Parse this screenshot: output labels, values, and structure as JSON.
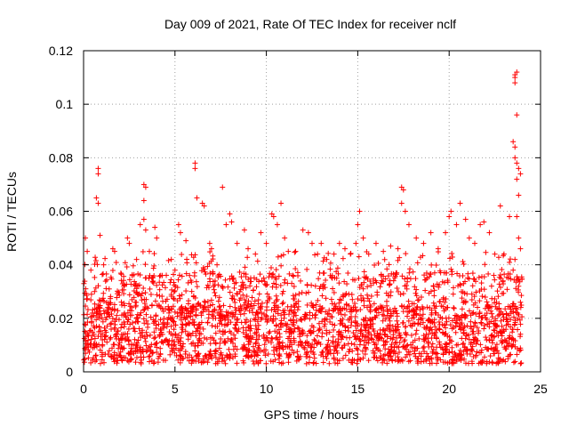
{
  "chart_data": {
    "type": "scatter",
    "title": "Day 009 of 2021, Rate Of TEC Index for receiver nclf",
    "xlabel": "GPS time / hours",
    "ylabel": "ROTI / TECUs",
    "xlim": [
      0,
      25
    ],
    "ylim": [
      0,
      0.12
    ],
    "x_ticks": [
      0,
      5,
      10,
      15,
      20,
      25
    ],
    "x_tick_labels": [
      "0",
      "5",
      "10",
      "15",
      "20",
      "25"
    ],
    "y_ticks": [
      0,
      0.02,
      0.04,
      0.06,
      0.08,
      0.1,
      0.12
    ],
    "y_tick_labels": [
      "0",
      "0.02",
      "0.04",
      "0.06",
      "0.08",
      "0.1",
      "0.12"
    ],
    "grid": true,
    "marker": "+",
    "color": "#ff0000",
    "dense_band": {
      "x_range": [
        0,
        24
      ],
      "y_low": 0.003,
      "y_high": 0.025
    },
    "series": [
      {
        "name": "ROTI",
        "points": [
          [
            0.1,
            0.05
          ],
          [
            0.2,
            0.045
          ],
          [
            0.4,
            0.038
          ],
          [
            0.6,
            0.03
          ],
          [
            0.8,
            0.076
          ],
          [
            0.8,
            0.074
          ],
          [
            0.7,
            0.065
          ],
          [
            0.8,
            0.063
          ],
          [
            0.9,
            0.051
          ],
          [
            1.1,
            0.04
          ],
          [
            1.6,
            0.046
          ],
          [
            1.7,
            0.045
          ],
          [
            2.2,
            0.032
          ],
          [
            2.4,
            0.05
          ],
          [
            2.5,
            0.048
          ],
          [
            2.9,
            0.042
          ],
          [
            3.1,
            0.055
          ],
          [
            3.3,
            0.07
          ],
          [
            3.4,
            0.069
          ],
          [
            3.3,
            0.064
          ],
          [
            3.3,
            0.057
          ],
          [
            3.4,
            0.053
          ],
          [
            3.6,
            0.045
          ],
          [
            3.9,
            0.054
          ],
          [
            4.0,
            0.05
          ],
          [
            4.3,
            0.036
          ],
          [
            4.8,
            0.042
          ],
          [
            5.0,
            0.038
          ],
          [
            5.2,
            0.055
          ],
          [
            5.3,
            0.052
          ],
          [
            5.6,
            0.049
          ],
          [
            5.8,
            0.036
          ],
          [
            6.1,
            0.078
          ],
          [
            6.1,
            0.076
          ],
          [
            6.2,
            0.065
          ],
          [
            6.5,
            0.063
          ],
          [
            6.6,
            0.062
          ],
          [
            6.9,
            0.048
          ],
          [
            7.0,
            0.046
          ],
          [
            7.3,
            0.04
          ],
          [
            7.6,
            0.069
          ],
          [
            7.8,
            0.055
          ],
          [
            8.0,
            0.059
          ],
          [
            8.1,
            0.056
          ],
          [
            8.4,
            0.048
          ],
          [
            8.8,
            0.053
          ],
          [
            9.0,
            0.046
          ],
          [
            9.4,
            0.044
          ],
          [
            9.7,
            0.052
          ],
          [
            10.0,
            0.048
          ],
          [
            10.3,
            0.059
          ],
          [
            10.4,
            0.058
          ],
          [
            10.6,
            0.055
          ],
          [
            10.8,
            0.063
          ],
          [
            11.0,
            0.05
          ],
          [
            11.2,
            0.045
          ],
          [
            11.6,
            0.045
          ],
          [
            12.0,
            0.053
          ],
          [
            12.3,
            0.052
          ],
          [
            12.5,
            0.048
          ],
          [
            12.8,
            0.044
          ],
          [
            13.0,
            0.048
          ],
          [
            13.3,
            0.042
          ],
          [
            13.7,
            0.044
          ],
          [
            14.0,
            0.048
          ],
          [
            14.3,
            0.046
          ],
          [
            14.6,
            0.044
          ],
          [
            14.9,
            0.048
          ],
          [
            15.0,
            0.055
          ],
          [
            15.1,
            0.06
          ],
          [
            15.3,
            0.05
          ],
          [
            15.6,
            0.044
          ],
          [
            16.0,
            0.048
          ],
          [
            16.4,
            0.045
          ],
          [
            16.8,
            0.047
          ],
          [
            17.2,
            0.046
          ],
          [
            17.4,
            0.069
          ],
          [
            17.5,
            0.068
          ],
          [
            17.4,
            0.063
          ],
          [
            17.6,
            0.06
          ],
          [
            17.8,
            0.055
          ],
          [
            18.2,
            0.05
          ],
          [
            18.6,
            0.048
          ],
          [
            19.0,
            0.052
          ],
          [
            19.4,
            0.046
          ],
          [
            19.8,
            0.052
          ],
          [
            20.0,
            0.058
          ],
          [
            20.1,
            0.06
          ],
          [
            20.4,
            0.055
          ],
          [
            20.6,
            0.063
          ],
          [
            20.9,
            0.057
          ],
          [
            21.1,
            0.05
          ],
          [
            21.4,
            0.048
          ],
          [
            21.7,
            0.055
          ],
          [
            21.9,
            0.056
          ],
          [
            22.2,
            0.052
          ],
          [
            22.5,
            0.044
          ],
          [
            22.8,
            0.062
          ],
          [
            23.0,
            0.044
          ],
          [
            23.3,
            0.058
          ],
          [
            23.6,
            0.111
          ],
          [
            23.6,
            0.11
          ],
          [
            23.7,
            0.112
          ],
          [
            23.6,
            0.108
          ],
          [
            23.7,
            0.096
          ],
          [
            23.5,
            0.086
          ],
          [
            23.6,
            0.084
          ],
          [
            23.6,
            0.08
          ],
          [
            23.7,
            0.078
          ],
          [
            23.8,
            0.076
          ],
          [
            23.9,
            0.074
          ],
          [
            23.7,
            0.072
          ],
          [
            23.8,
            0.066
          ],
          [
            23.7,
            0.058
          ],
          [
            23.8,
            0.05
          ],
          [
            23.9,
            0.046
          ],
          [
            23.6,
            0.042
          ],
          [
            23.5,
            0.038
          ],
          [
            23.8,
            0.032
          ],
          [
            23.9,
            0.026
          ]
        ]
      }
    ]
  }
}
